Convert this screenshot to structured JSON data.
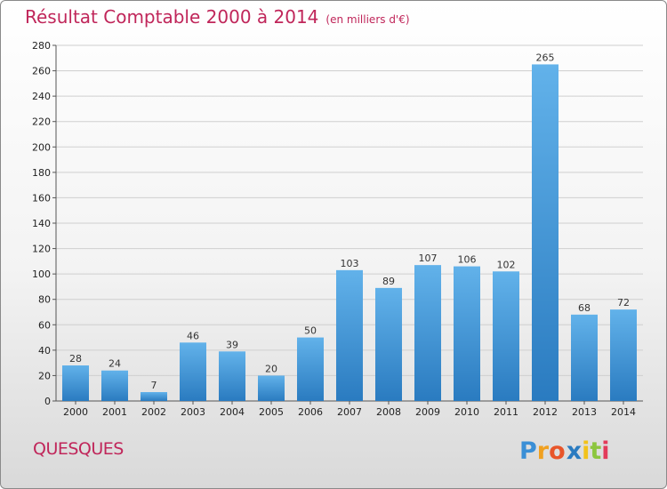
{
  "header": {
    "title": "Résultat Comptable 2000 à 2014",
    "subtitle": "(en milliers d'€)"
  },
  "footer": {
    "place": "QUESQUES",
    "logo_text": "Proxiti"
  },
  "colors": {
    "title": "#c0265a",
    "bar_top": "#62b2ea",
    "bar_bottom": "#2a7bc0",
    "grid": "#cfcfcf"
  },
  "chart_data": {
    "type": "bar",
    "title": "Résultat Comptable 2000 à 2014",
    "subtitle": "(en milliers d'€)",
    "categories": [
      "2000",
      "2001",
      "2002",
      "2003",
      "2004",
      "2005",
      "2006",
      "2007",
      "2008",
      "2009",
      "2010",
      "2011",
      "2012",
      "2013",
      "2014"
    ],
    "values": [
      28,
      24,
      7,
      46,
      39,
      20,
      50,
      103,
      89,
      107,
      106,
      102,
      265,
      68,
      72
    ],
    "ylim": [
      0,
      280
    ],
    "yticks": [
      0,
      20,
      40,
      60,
      80,
      100,
      120,
      140,
      160,
      180,
      200,
      220,
      240,
      260,
      280
    ],
    "grid": true,
    "legend": "none"
  }
}
